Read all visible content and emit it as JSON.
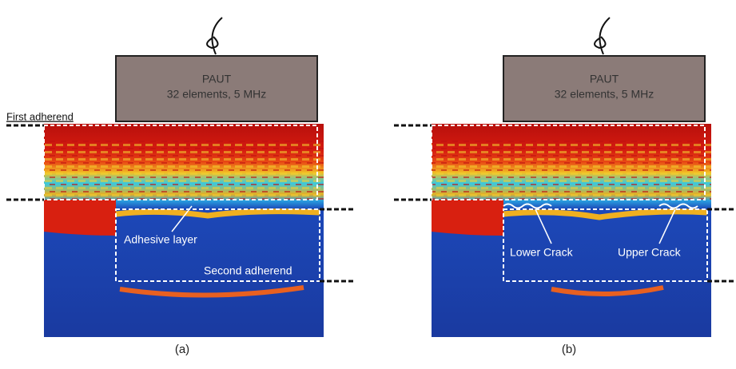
{
  "panels": [
    {
      "probe": {
        "title": "PAUT",
        "subtitle": "32 elements, 5 MHz"
      },
      "labels": [
        "First adherend",
        "Adhesive layer",
        "Second adherend"
      ],
      "caption": "(a)"
    },
    {
      "probe": {
        "title": "PAUT",
        "subtitle": "32 elements, 5 MHz"
      },
      "labels": [
        "Lower Crack",
        "Upper Crack"
      ],
      "caption": "(b)"
    }
  ]
}
